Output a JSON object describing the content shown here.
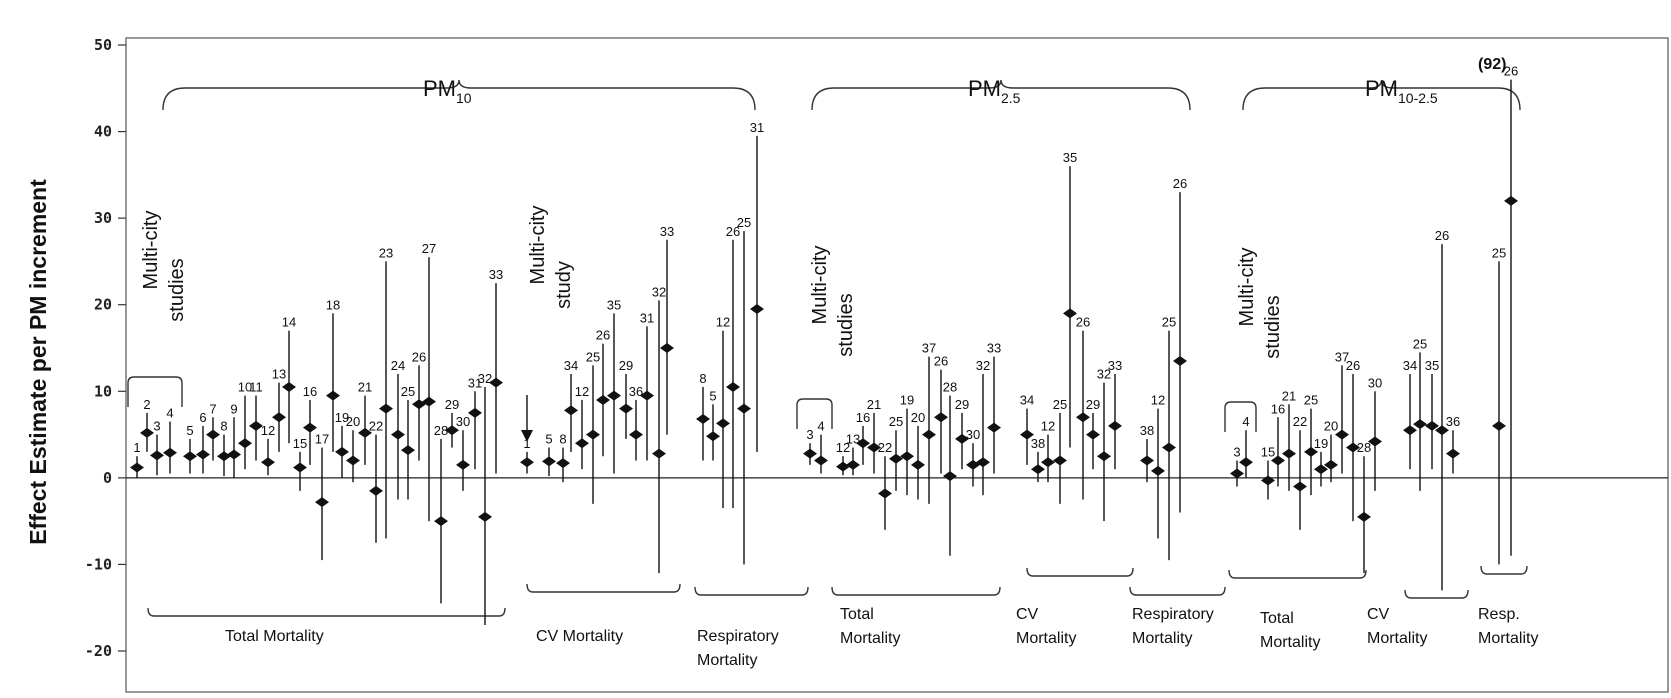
{
  "chart_data": {
    "type": "scatter",
    "ylabel": "Effect Estimate per PM increment",
    "ylim": [
      -20,
      50
    ],
    "yticks": [
      "50",
      "40",
      "30",
      "20",
      "10",
      "0",
      "-10",
      "-20"
    ],
    "pollutant_labels": [
      {
        "main": "PM",
        "sub": "10"
      },
      {
        "main": "PM",
        "sub": "2.5"
      },
      {
        "main": "PM",
        "sub": "10-2.5"
      }
    ],
    "group_labels": [
      {
        "text": "Total Mortality"
      },
      {
        "text": "CV Mortality"
      },
      {
        "text": "Respiratory\nMortality"
      },
      {
        "text": "Total\nMortality"
      },
      {
        "text": "CV\nMortality"
      },
      {
        "text": "Respiratory\nMortality"
      },
      {
        "text": "Total\nMortality"
      },
      {
        "text": "CV\nMortality"
      },
      {
        "text": "Resp.\nMortality"
      }
    ],
    "multi_city_notes": [
      {
        "lines": [
          "Multi-city",
          "studies"
        ]
      },
      {
        "lines": [
          "Multi-city",
          "study"
        ]
      },
      {
        "lines": [
          "Multi-city",
          "studies"
        ]
      },
      {
        "lines": [
          "Multi-city",
          "studies"
        ]
      }
    ],
    "overflow_label": "(92)",
    "points": [
      {
        "id": "1",
        "x": 137,
        "y": 1.2,
        "lo": 0.0,
        "hi": 2.5
      },
      {
        "id": "2",
        "x": 147,
        "y": 5.2,
        "lo": 3.0,
        "hi": 7.5
      },
      {
        "id": "3",
        "x": 157,
        "y": 2.6,
        "lo": 0.3,
        "hi": 5.0
      },
      {
        "id": "4",
        "x": 170,
        "y": 2.9,
        "lo": 0.5,
        "hi": 6.5
      },
      {
        "id": "5",
        "x": 190,
        "y": 2.5,
        "lo": 0.5,
        "hi": 4.5
      },
      {
        "id": "6",
        "x": 203,
        "y": 2.7,
        "lo": 0.5,
        "hi": 6.0
      },
      {
        "id": "7",
        "x": 213,
        "y": 5.0,
        "lo": 2.0,
        "hi": 7.0
      },
      {
        "id": "8",
        "x": 224,
        "y": 2.5,
        "lo": 0.2,
        "hi": 5.0
      },
      {
        "id": "9",
        "x": 234,
        "y": 2.7,
        "lo": 0.0,
        "hi": 7.0
      },
      {
        "id": "10",
        "x": 245,
        "y": 4.0,
        "lo": 1.0,
        "hi": 9.5
      },
      {
        "id": "11",
        "x": 256,
        "y": 6.0,
        "lo": 2.0,
        "hi": 9.5
      },
      {
        "id": "12",
        "x": 268,
        "y": 1.8,
        "lo": 0.3,
        "hi": 4.5
      },
      {
        "id": "13",
        "x": 279,
        "y": 7.0,
        "lo": 3.0,
        "hi": 11.0
      },
      {
        "id": "14",
        "x": 289,
        "y": 10.5,
        "lo": 4.0,
        "hi": 17.0
      },
      {
        "id": "15",
        "x": 300,
        "y": 1.2,
        "lo": -1.5,
        "hi": 3.0
      },
      {
        "id": "16",
        "x": 310,
        "y": 5.8,
        "lo": 1.5,
        "hi": 9.0
      },
      {
        "id": "17",
        "x": 322,
        "y": -2.8,
        "lo": -9.5,
        "hi": 3.5
      },
      {
        "id": "18",
        "x": 333,
        "y": 9.5,
        "lo": 3.0,
        "hi": 19.0
      },
      {
        "id": "19",
        "x": 342,
        "y": 3.0,
        "lo": 0.0,
        "hi": 6.0
      },
      {
        "id": "20",
        "x": 353,
        "y": 2.0,
        "lo": -0.5,
        "hi": 5.5
      },
      {
        "id": "21",
        "x": 365,
        "y": 5.2,
        "lo": 1.5,
        "hi": 9.5
      },
      {
        "id": "22",
        "x": 376,
        "y": -1.5,
        "lo": -7.5,
        "hi": 5.0
      },
      {
        "id": "23",
        "x": 386,
        "y": 8.0,
        "lo": -7.0,
        "hi": 25.0
      },
      {
        "id": "24",
        "x": 398,
        "y": 5.0,
        "lo": -2.5,
        "hi": 12.0
      },
      {
        "id": "25",
        "x": 408,
        "y": 3.2,
        "lo": -2.5,
        "hi": 9.0
      },
      {
        "id": "26",
        "x": 419,
        "y": 8.5,
        "lo": 2.0,
        "hi": 13.0
      },
      {
        "id": "27",
        "x": 429,
        "y": 8.8,
        "lo": -5.0,
        "hi": 25.5
      },
      {
        "id": "28",
        "x": 441,
        "y": -5.0,
        "lo": -14.5,
        "hi": 4.5
      },
      {
        "id": "29",
        "x": 452,
        "y": 5.5,
        "lo": 3.5,
        "hi": 7.5
      },
      {
        "id": "30",
        "x": 463,
        "y": 1.5,
        "lo": -1.5,
        "hi": 5.5
      },
      {
        "id": "31",
        "x": 475,
        "y": 7.5,
        "lo": 1.0,
        "hi": 10.0
      },
      {
        "id": "32",
        "x": 485,
        "y": -4.5,
        "lo": -17.0,
        "hi": 10.5
      },
      {
        "id": "33",
        "x": 496,
        "y": 11.0,
        "lo": 0.5,
        "hi": 22.5
      },
      {
        "id": "1",
        "x": 527,
        "y": 1.8,
        "lo": 0.5,
        "hi": 3.0
      },
      {
        "id": "5",
        "x": 549,
        "y": 1.9,
        "lo": 0.2,
        "hi": 3.5
      },
      {
        "id": "8",
        "x": 563,
        "y": 1.7,
        "lo": -0.5,
        "hi": 3.5
      },
      {
        "id": "34",
        "x": 571,
        "y": 7.8,
        "lo": 3.0,
        "hi": 12.0
      },
      {
        "id": "12",
        "x": 582,
        "y": 4.0,
        "lo": 1.0,
        "hi": 9.0
      },
      {
        "id": "25",
        "x": 593,
        "y": 5.0,
        "lo": -3.0,
        "hi": 13.0
      },
      {
        "id": "26",
        "x": 603,
        "y": 9.0,
        "lo": 2.5,
        "hi": 15.5
      },
      {
        "id": "35",
        "x": 614,
        "y": 9.5,
        "lo": 0.5,
        "hi": 19.0
      },
      {
        "id": "29",
        "x": 626,
        "y": 8.0,
        "lo": 4.5,
        "hi": 12.0
      },
      {
        "id": "36",
        "x": 636,
        "y": 5.0,
        "lo": 2.0,
        "hi": 9.0
      },
      {
        "id": "31",
        "x": 647,
        "y": 9.5,
        "lo": 2.0,
        "hi": 17.5
      },
      {
        "id": "32",
        "x": 659,
        "y": 2.8,
        "lo": -11.0,
        "hi": 20.5
      },
      {
        "id": "33",
        "x": 667,
        "y": 15.0,
        "lo": 5.0,
        "hi": 27.5
      },
      {
        "id": "8",
        "x": 703,
        "y": 6.8,
        "lo": 2.0,
        "hi": 10.5
      },
      {
        "id": "5",
        "x": 713,
        "y": 4.8,
        "lo": 2.0,
        "hi": 8.5
      },
      {
        "id": "12",
        "x": 723,
        "y": 6.3,
        "lo": -3.5,
        "hi": 17.0
      },
      {
        "id": "26",
        "x": 733,
        "y": 10.5,
        "lo": -3.5,
        "hi": 27.5
      },
      {
        "id": "25",
        "x": 744,
        "y": 8.0,
        "lo": -10.0,
        "hi": 28.5
      },
      {
        "id": "31",
        "x": 757,
        "y": 19.5,
        "lo": 3.0,
        "hi": 39.5
      },
      {
        "id": "3",
        "x": 810,
        "y": 2.8,
        "lo": 1.5,
        "hi": 4.0
      },
      {
        "id": "4",
        "x": 821,
        "y": 2.0,
        "lo": 0.5,
        "hi": 5.0
      },
      {
        "id": "12",
        "x": 843,
        "y": 1.3,
        "lo": 0.3,
        "hi": 2.5
      },
      {
        "id": "13",
        "x": 853,
        "y": 1.5,
        "lo": 0.3,
        "hi": 3.5
      },
      {
        "id": "16",
        "x": 863,
        "y": 4.0,
        "lo": 1.5,
        "hi": 6.0
      },
      {
        "id": "21",
        "x": 874,
        "y": 3.5,
        "lo": 0.5,
        "hi": 7.5
      },
      {
        "id": "22",
        "x": 885,
        "y": -1.8,
        "lo": -6.0,
        "hi": 2.5
      },
      {
        "id": "25",
        "x": 896,
        "y": 2.2,
        "lo": -1.5,
        "hi": 5.5
      },
      {
        "id": "19",
        "x": 907,
        "y": 2.5,
        "lo": -2.0,
        "hi": 8.0
      },
      {
        "id": "20",
        "x": 918,
        "y": 1.5,
        "lo": -2.5,
        "hi": 6.0
      },
      {
        "id": "37",
        "x": 929,
        "y": 5.0,
        "lo": -3.0,
        "hi": 14.0
      },
      {
        "id": "26",
        "x": 941,
        "y": 7.0,
        "lo": 0.5,
        "hi": 12.5
      },
      {
        "id": "28",
        "x": 950,
        "y": 0.2,
        "lo": -9.0,
        "hi": 9.5
      },
      {
        "id": "29",
        "x": 962,
        "y": 4.5,
        "lo": 1.0,
        "hi": 7.5
      },
      {
        "id": "30",
        "x": 973,
        "y": 1.5,
        "lo": -1.0,
        "hi": 4.0
      },
      {
        "id": "32",
        "x": 983,
        "y": 1.8,
        "lo": -2.0,
        "hi": 12.0
      },
      {
        "id": "33",
        "x": 994,
        "y": 5.8,
        "lo": 0.5,
        "hi": 14.0
      },
      {
        "id": "34",
        "x": 1027,
        "y": 5.0,
        "lo": 1.5,
        "hi": 8.0
      },
      {
        "id": "38",
        "x": 1038,
        "y": 1.0,
        "lo": -0.5,
        "hi": 3.0
      },
      {
        "id": "12",
        "x": 1048,
        "y": 1.8,
        "lo": -0.5,
        "hi": 5.0
      },
      {
        "id": "25",
        "x": 1060,
        "y": 2.0,
        "lo": -3.0,
        "hi": 7.5
      },
      {
        "id": "35",
        "x": 1070,
        "y": 19.0,
        "lo": 3.5,
        "hi": 36.0
      },
      {
        "id": "26",
        "x": 1083,
        "y": 7.0,
        "lo": -2.5,
        "hi": 17.0
      },
      {
        "id": "29",
        "x": 1093,
        "y": 5.0,
        "lo": 1.0,
        "hi": 7.5
      },
      {
        "id": "32",
        "x": 1104,
        "y": 2.5,
        "lo": -5.0,
        "hi": 11.0
      },
      {
        "id": "33",
        "x": 1115,
        "y": 6.0,
        "lo": 1.0,
        "hi": 12.0
      },
      {
        "id": "38",
        "x": 1147,
        "y": 2.0,
        "lo": -0.5,
        "hi": 4.5
      },
      {
        "id": "12",
        "x": 1158,
        "y": 0.8,
        "lo": -7.0,
        "hi": 8.0
      },
      {
        "id": "25",
        "x": 1169,
        "y": 3.5,
        "lo": -9.5,
        "hi": 17.0
      },
      {
        "id": "26",
        "x": 1180,
        "y": 13.5,
        "lo": -4.0,
        "hi": 33.0
      },
      {
        "id": "3",
        "x": 1237,
        "y": 0.5,
        "lo": -1.0,
        "hi": 2.0
      },
      {
        "id": "4",
        "x": 1246,
        "y": 1.8,
        "lo": 0.0,
        "hi": 5.5
      },
      {
        "id": "15",
        "x": 1268,
        "y": -0.3,
        "lo": -2.5,
        "hi": 2.0
      },
      {
        "id": "16",
        "x": 1278,
        "y": 2.0,
        "lo": -1.0,
        "hi": 7.0
      },
      {
        "id": "21",
        "x": 1289,
        "y": 2.8,
        "lo": -1.5,
        "hi": 8.5
      },
      {
        "id": "22",
        "x": 1300,
        "y": -1.0,
        "lo": -6.0,
        "hi": 5.5
      },
      {
        "id": "25",
        "x": 1311,
        "y": 3.0,
        "lo": -2.0,
        "hi": 8.0
      },
      {
        "id": "19",
        "x": 1321,
        "y": 1.0,
        "lo": -1.0,
        "hi": 3.0
      },
      {
        "id": "20",
        "x": 1331,
        "y": 1.5,
        "lo": -0.5,
        "hi": 5.0
      },
      {
        "id": "37",
        "x": 1342,
        "y": 5.0,
        "lo": 0.5,
        "hi": 13.0
      },
      {
        "id": "26",
        "x": 1353,
        "y": 3.5,
        "lo": -5.0,
        "hi": 12.0
      },
      {
        "id": "28",
        "x": 1364,
        "y": -4.5,
        "lo": -11.0,
        "hi": 2.5
      },
      {
        "id": "30",
        "x": 1375,
        "y": 4.2,
        "lo": -1.5,
        "hi": 10.0
      },
      {
        "id": "34",
        "x": 1410,
        "y": 5.5,
        "lo": 1.0,
        "hi": 12.0
      },
      {
        "id": "25",
        "x": 1420,
        "y": 6.2,
        "lo": -1.5,
        "hi": 14.5
      },
      {
        "id": "35",
        "x": 1432,
        "y": 6.0,
        "lo": 1.0,
        "hi": 12.0
      },
      {
        "id": "26",
        "x": 1442,
        "y": 5.5,
        "lo": -13.0,
        "hi": 27.0
      },
      {
        "id": "36",
        "x": 1453,
        "y": 2.8,
        "lo": 0.5,
        "hi": 5.5
      },
      {
        "id": "25",
        "x": 1499,
        "y": 6.0,
        "lo": -10.0,
        "hi": 25.0
      },
      {
        "id": "26",
        "x": 1511,
        "y": 32.0,
        "lo": -9.0,
        "hi": 46.0
      }
    ]
  }
}
